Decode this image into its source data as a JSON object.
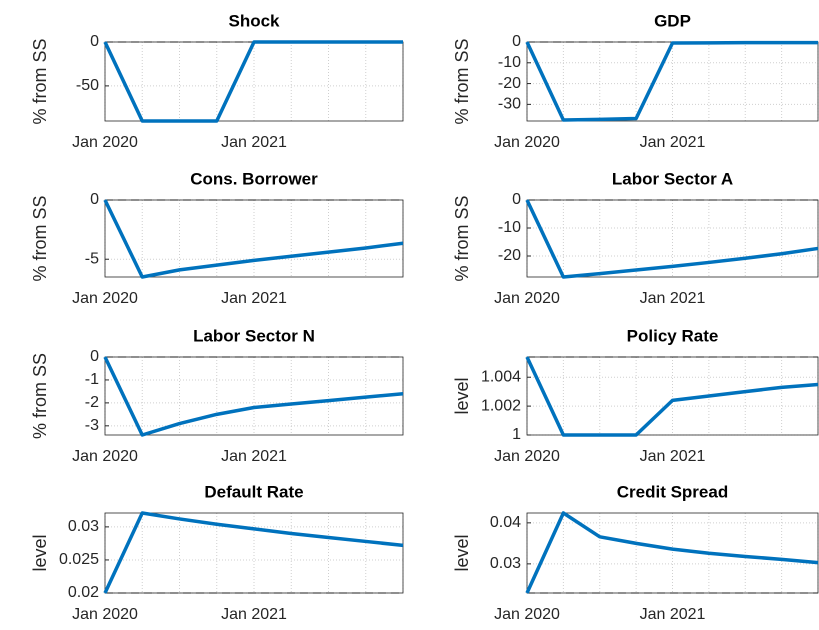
{
  "chart_data": [
    {
      "type": "line",
      "title": "Shock",
      "ylabel": "% from SS",
      "categories": [
        "Jan 2020",
        null,
        null,
        null,
        "Jan 2021",
        null,
        null,
        null,
        null
      ],
      "values": [
        0,
        -90,
        -90,
        -90,
        0,
        0,
        0,
        0,
        0
      ],
      "color": "#0072bd",
      "ylim": [
        -90,
        0
      ],
      "yticks": [
        -50,
        0
      ],
      "grid": true
    },
    {
      "type": "line",
      "title": "GDP",
      "ylabel": "% from SS",
      "categories": [
        "Jan 2020",
        null,
        null,
        null,
        "Jan 2021",
        null,
        null,
        null,
        null
      ],
      "values": [
        0,
        -37.5,
        -37.2,
        -36.8,
        -0.5,
        -0.4,
        -0.3,
        -0.3,
        -0.3
      ],
      "color": "#0072bd",
      "ylim": [
        -38,
        0
      ],
      "yticks": [
        -30,
        -20,
        -10,
        0
      ],
      "grid": true
    },
    {
      "type": "line",
      "title": "Cons. Borrower",
      "ylabel": "% from SS",
      "categories": [
        "Jan 2020",
        null,
        null,
        null,
        "Jan 2021",
        null,
        null,
        null,
        null
      ],
      "values": [
        0,
        -6.5,
        -5.9,
        -5.5,
        -5.1,
        -4.75,
        -4.4,
        -4.05,
        -3.65
      ],
      "color": "#0072bd",
      "ylim": [
        -6.5,
        0
      ],
      "yticks": [
        -5,
        0
      ],
      "grid": true
    },
    {
      "type": "line",
      "title": "Labor Sector A",
      "ylabel": "% from SS",
      "categories": [
        "Jan 2020",
        null,
        null,
        null,
        "Jan 2021",
        null,
        null,
        null,
        null
      ],
      "values": [
        0,
        -27.5,
        -26.3,
        -25,
        -23.7,
        -22.3,
        -20.8,
        -19.2,
        -17.3
      ],
      "color": "#0072bd",
      "ylim": [
        -27.5,
        0
      ],
      "yticks": [
        -20,
        -10,
        0
      ],
      "grid": true
    },
    {
      "type": "line",
      "title": "Labor Sector N",
      "ylabel": "% from SS",
      "categories": [
        "Jan 2020",
        null,
        null,
        null,
        "Jan 2021",
        null,
        null,
        null,
        null
      ],
      "values": [
        0,
        -3.4,
        -2.9,
        -2.5,
        -2.2,
        -2.05,
        -1.9,
        -1.75,
        -1.6
      ],
      "color": "#0072bd",
      "ylim": [
        -3.4,
        0
      ],
      "yticks": [
        -3,
        -2,
        -1,
        0
      ],
      "grid": true
    },
    {
      "type": "line",
      "title": "Policy Rate",
      "ylabel": "level",
      "categories": [
        "Jan 2020",
        null,
        null,
        null,
        "Jan 2021",
        null,
        null,
        null,
        null
      ],
      "values": [
        1.0054,
        1,
        1,
        1,
        1.0024,
        1.0027,
        1.003,
        1.0033,
        1.0035
      ],
      "color": "#0072bd",
      "ylim": [
        1,
        1.0054
      ],
      "yticks": [
        1,
        1.002,
        1.004
      ],
      "grid": true
    },
    {
      "type": "line",
      "title": "Default Rate",
      "ylabel": "level",
      "categories": [
        "Jan 2020",
        null,
        null,
        null,
        "Jan 2021",
        null,
        null,
        null,
        null
      ],
      "values": [
        0.02,
        0.0321,
        0.0312,
        0.0304,
        0.0297,
        0.029,
        0.0284,
        0.0278,
        0.0272
      ],
      "color": "#0072bd",
      "ylim": [
        0.02,
        0.0321
      ],
      "yticks": [
        0.02,
        0.025,
        0.03
      ],
      "grid": true
    },
    {
      "type": "line",
      "title": "Credit Spread",
      "ylabel": "level",
      "categories": [
        "Jan 2020",
        null,
        null,
        null,
        "Jan 2021",
        null,
        null,
        null,
        null
      ],
      "values": [
        0.0229,
        0.0424,
        0.0366,
        0.035,
        0.0336,
        0.0326,
        0.0318,
        0.0311,
        0.0303
      ],
      "color": "#0072bd",
      "ylim": [
        0.0229,
        0.0424
      ],
      "yticks": [
        0.03,
        0.04
      ],
      "grid": true
    }
  ]
}
